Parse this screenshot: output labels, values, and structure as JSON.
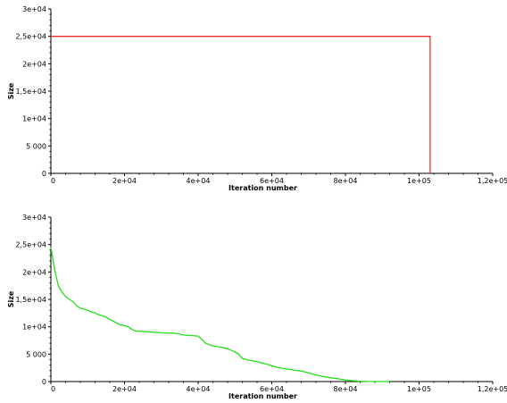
{
  "chart_data": [
    {
      "type": "line",
      "title": "",
      "xlabel": "Iteration number",
      "ylabel": "Size",
      "xlim": [
        0,
        120000
      ],
      "ylim": [
        0,
        30000
      ],
      "x_ticks": [
        {
          "value": 0,
          "label": "0"
        },
        {
          "value": 20000,
          "label": "2e+04"
        },
        {
          "value": 40000,
          "label": "4e+04"
        },
        {
          "value": 60000,
          "label": "6e+04"
        },
        {
          "value": 80000,
          "label": "8e+04"
        },
        {
          "value": 100000,
          "label": "1e+05"
        },
        {
          "value": 120000,
          "label": "1,2e+05"
        }
      ],
      "y_ticks": [
        {
          "value": 0,
          "label": "0"
        },
        {
          "value": 5000,
          "label": "5 000"
        },
        {
          "value": 10000,
          "label": "1e+04"
        },
        {
          "value": 15000,
          "label": "1,5e+04"
        },
        {
          "value": 20000,
          "label": "2e+04"
        },
        {
          "value": 25000,
          "label": "2,5e+04"
        },
        {
          "value": 30000,
          "label": "3e+04"
        }
      ],
      "grid": false,
      "series": [
        {
          "color": "#e8302a",
          "x": [
            0,
            103000,
            103000
          ],
          "y": [
            25000,
            25000,
            0
          ]
        }
      ]
    },
    {
      "type": "line",
      "title": "",
      "xlabel": "Iteration number",
      "ylabel": "Size",
      "xlim": [
        0,
        120000
      ],
      "ylim": [
        0,
        30000
      ],
      "x_ticks": [
        {
          "value": 0,
          "label": "0"
        },
        {
          "value": 20000,
          "label": "2e+04"
        },
        {
          "value": 40000,
          "label": "4e+04"
        },
        {
          "value": 60000,
          "label": "6e+04"
        },
        {
          "value": 80000,
          "label": "8e+04"
        },
        {
          "value": 100000,
          "label": "1e+05"
        },
        {
          "value": 120000,
          "label": "1,2e+05"
        }
      ],
      "y_ticks": [
        {
          "value": 0,
          "label": "0"
        },
        {
          "value": 5000,
          "label": "5 000"
        },
        {
          "value": 10000,
          "label": "1e+04"
        },
        {
          "value": 15000,
          "label": "1,5e+04"
        },
        {
          "value": 20000,
          "label": "2e+04"
        },
        {
          "value": 25000,
          "label": "2,5e+04"
        },
        {
          "value": 30000,
          "label": "3e+04"
        }
      ],
      "grid": false,
      "series": [
        {
          "color": "#22e01a",
          "x": [
            0,
            500,
            1000,
            2000,
            3000,
            4000,
            5000,
            6000,
            7000,
            8000,
            9000,
            10000,
            11000,
            12000,
            13000,
            14000,
            15000,
            16000,
            17000,
            18000,
            19000,
            20000,
            21000,
            22000,
            23000,
            24000,
            26000,
            28000,
            30000,
            32000,
            34000,
            36000,
            38000,
            40000,
            41000,
            42000,
            44000,
            46000,
            48000,
            50000,
            51000,
            52000,
            54000,
            56000,
            58000,
            60000,
            62000,
            64000,
            66000,
            68000,
            70000,
            72000,
            74000,
            76000,
            78000,
            80000,
            82000,
            84000,
            86000,
            88000,
            90000,
            92000
          ],
          "y": [
            24500,
            22500,
            20500,
            17500,
            16300,
            15500,
            15000,
            14600,
            13800,
            13400,
            13200,
            13000,
            12700,
            12500,
            12200,
            12000,
            11800,
            11300,
            11000,
            10600,
            10300,
            10200,
            10000,
            9500,
            9200,
            9200,
            9100,
            9000,
            8900,
            8850,
            8800,
            8500,
            8400,
            8300,
            7700,
            7000,
            6500,
            6300,
            6000,
            5400,
            5000,
            4200,
            3900,
            3600,
            3300,
            2900,
            2500,
            2300,
            2100,
            1900,
            1600,
            1200,
            900,
            700,
            500,
            300,
            150,
            60,
            20,
            0,
            0,
            0
          ]
        }
      ]
    }
  ]
}
